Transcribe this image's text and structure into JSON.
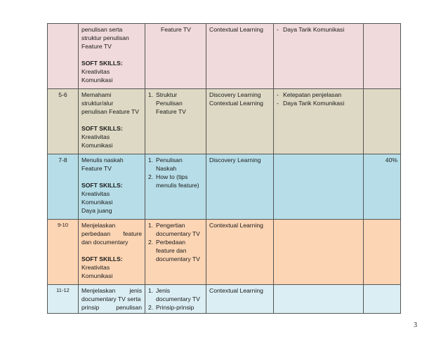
{
  "rows": [
    {
      "no": "",
      "color": "#f0dadb",
      "skill_lines": [
        "penulisan serta",
        "struktur penulisan",
        "Feature TV"
      ],
      "soft_label": "SOFT SKILLS:",
      "soft_items": [
        "Kreativitas",
        "Komunikasi"
      ],
      "materi": "Feature TV",
      "method": [
        "Contextual Learning"
      ],
      "indicators": [
        "Daya Tarik Komunikasi"
      ],
      "weight": ""
    },
    {
      "no": "5-6",
      "color": "#ddd9c4",
      "skill_lines": [
        "Memahami",
        "struktur/alur",
        "penulisan Feature TV"
      ],
      "soft_label": "SOFT SKILLS:",
      "soft_items": [
        "Kreativitas",
        "Komunikasi"
      ],
      "materi_items": [
        {
          "num": "1.",
          "lines": [
            "Struktur",
            "Penulisan",
            "Feature TV"
          ]
        }
      ],
      "method": [
        "Discovery Learning",
        "Contextual Learning"
      ],
      "indicators": [
        "Ketepatan penjelasan",
        "Daya Tarik Komunikasi"
      ],
      "weight": ""
    },
    {
      "no": "7-8",
      "color": "#b7dee8",
      "skill_lines": [
        "Menulis naskah",
        "Feature TV"
      ],
      "soft_label": "SOFT SKILLS:",
      "soft_items": [
        "Kreativitas",
        "Komunikasi",
        "Daya juang"
      ],
      "materi_items": [
        {
          "num": "1.",
          "lines": [
            "Penulisan",
            "Naskah"
          ]
        },
        {
          "num": "2.",
          "lines": [
            "How to (tips",
            "menulis feature)"
          ]
        }
      ],
      "method": [
        "Discovery Learning"
      ],
      "indicators": [],
      "weight": "40%"
    },
    {
      "no": "9-10",
      "color": "#fcd5b4",
      "skill_lines_justified": [
        [
          "Menjelaskan"
        ],
        [
          "perbedaan",
          "feature"
        ],
        [
          "dan documentary"
        ]
      ],
      "soft_label": "SOFT SKILLS:",
      "soft_items": [
        "Kreativitas",
        "Komunikasi"
      ],
      "materi_items": [
        {
          "num": "1.",
          "lines": [
            "Pengertian",
            "documentary TV"
          ]
        },
        {
          "num": "2.",
          "lines": [
            "Perbedaan",
            "feature dan",
            "documentary TV"
          ]
        }
      ],
      "method": [
        "Contextual Learning"
      ],
      "indicators": [],
      "weight": ""
    },
    {
      "no": "11-12",
      "color": "#dbeef3",
      "skill_lines_justified": [
        [
          "Menjelaskan",
          "jenis"
        ],
        [
          "documentary TV serta"
        ],
        [
          "prinsip",
          "penulisan"
        ]
      ],
      "materi_items": [
        {
          "num": "1.",
          "lines": [
            "Jenis",
            "documentary TV"
          ]
        },
        {
          "num": "2.",
          "lines": [
            "Prinsip-prinsip"
          ]
        }
      ],
      "method": [
        "Contextual Learning"
      ],
      "indicators": [],
      "weight": ""
    }
  ],
  "page_number": "3"
}
